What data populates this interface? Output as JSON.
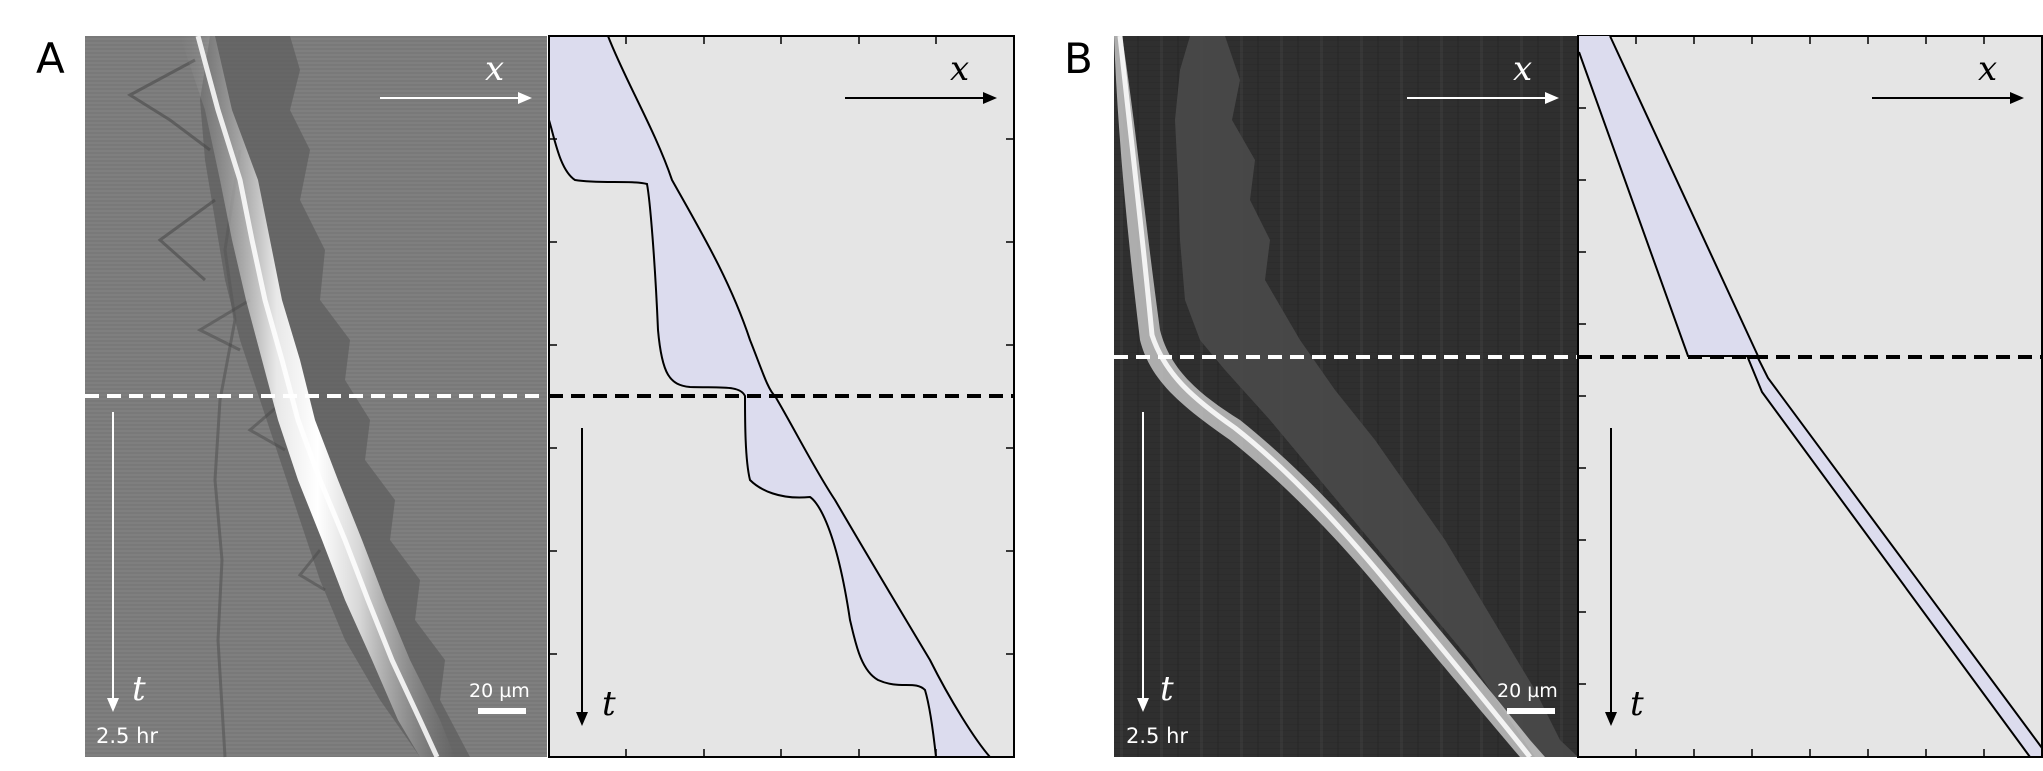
{
  "panels": [
    {
      "letter": "A",
      "axis_x": "x",
      "axis_t": "t",
      "scale_bar": "20 µm",
      "time_label": "2.5 hr"
    },
    {
      "letter": "B",
      "axis_x": "x",
      "axis_t": "t",
      "scale_bar": "20 µm",
      "time_label": "2.5 hr"
    }
  ],
  "colors": {
    "plot_background": "#e5e5e5",
    "fill_region": "#dcdcee",
    "dashed_line_image": "#ffffff",
    "dashed_line_plot": "#000000",
    "kymograph_A_background": "#7f7f7f",
    "kymograph_B_background": "#2f2f2f"
  }
}
